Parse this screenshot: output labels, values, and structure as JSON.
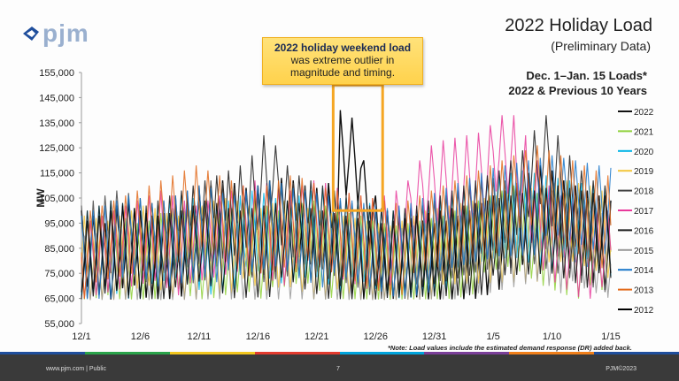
{
  "logo": {
    "text": "pjm"
  },
  "header": {
    "title": "2022 Holiday Load",
    "subtitle": "(Preliminary Data)",
    "range_line1": "Dec. 1–Jan. 15 Loads*",
    "range_line2": "2022 & Previous 10 Years"
  },
  "callout": {
    "line1": "2022 holiday weekend load",
    "line2": "was extreme outlier in",
    "line3": "magnitude and timing."
  },
  "note": "*Note: Load values include the estimated demand response (DR) added back.",
  "footer": {
    "left": "www.pjm.com | Public",
    "page": "7",
    "right": "PJM©2023"
  },
  "chart_data": {
    "type": "line",
    "ylabel": "MW",
    "ylim": [
      55000,
      155000
    ],
    "yticks": [
      "155,000",
      "145,000",
      "135,000",
      "125,000",
      "115,000",
      "105,000",
      "95,000",
      "85,000",
      "75,000",
      "65,000",
      "55,000"
    ],
    "xticks": [
      "12/1",
      "12/6",
      "12/11",
      "12/16",
      "12/21",
      "12/26",
      "12/31",
      "1/5",
      "1/10",
      "1/15"
    ],
    "x_range": [
      "12/1",
      "1/15"
    ],
    "legend_position": "right",
    "highlight": {
      "x_start": "12/23",
      "x_end": "12/26",
      "color": "#f5a623"
    },
    "series": [
      {
        "name": "2022",
        "color": "#111111",
        "daily_peak": [
          100000,
          98000,
          95000,
          102000,
          104000,
          100000,
          98000,
          99000,
          103000,
          105000,
          108000,
          110000,
          112000,
          111000,
          109000,
          110000,
          112000,
          113000,
          112000,
          110000,
          109000,
          111000,
          140000,
          137000,
          120000,
          106000,
          100000,
          98000,
          97000,
          96000,
          95000,
          96000,
          98000,
          100000,
          103000,
          106000,
          108000,
          110000,
          115000,
          118000,
          116000,
          112000,
          110000,
          108000,
          106000,
          104000
        ]
      },
      {
        "name": "2021",
        "color": "#8fd13a",
        "daily_peak": [
          96000,
          98000,
          100000,
          97000,
          95000,
          96000,
          99000,
          101000,
          100000,
          98000,
          97000,
          99000,
          101000,
          103000,
          104000,
          102000,
          100000,
          101000,
          103000,
          104000,
          102000,
          100000,
          99000,
          98000,
          96000,
          95000,
          94000,
          95000,
          96000,
          97000,
          98000,
          100000,
          102000,
          104000,
          106000,
          108000,
          110000,
          109000,
          107000,
          105000,
          104000,
          103000,
          102000,
          101000,
          100000,
          99000
        ]
      },
      {
        "name": "2020",
        "color": "#00b4e6",
        "daily_peak": [
          100000,
          102000,
          104000,
          103000,
          101000,
          100000,
          102000,
          104000,
          106000,
          105000,
          103000,
          102000,
          104000,
          106000,
          108000,
          107000,
          105000,
          104000,
          106000,
          108000,
          109000,
          107000,
          105000,
          104000,
          103000,
          101000,
          100000,
          99000,
          100000,
          102000,
          104000,
          106000,
          108000,
          110000,
          112000,
          114000,
          115000,
          116000,
          115000,
          114000,
          113000,
          112000,
          111000,
          110000,
          109000,
          108000
        ]
      },
      {
        "name": "2019",
        "color": "#f3c63b",
        "daily_peak": [
          98000,
          97000,
          96000,
          98000,
          100000,
          102000,
          101000,
          99000,
          98000,
          100000,
          102000,
          104000,
          105000,
          104000,
          102000,
          101000,
          103000,
          104000,
          103000,
          101000,
          100000,
          99000,
          98000,
          97000,
          96000,
          95000,
          94000,
          96000,
          98000,
          100000,
          101000,
          102000,
          103000,
          104000,
          105000,
          106000,
          107000,
          108000,
          109000,
          110000,
          111000,
          112000,
          111000,
          110000,
          108000,
          106000
        ]
      },
      {
        "name": "2018",
        "color": "#444444",
        "daily_peak": [
          102000,
          104000,
          106000,
          108000,
          107000,
          105000,
          103000,
          104000,
          106000,
          108000,
          110000,
          112000,
          111000,
          109000,
          107000,
          106000,
          108000,
          110000,
          111000,
          110000,
          108000,
          106000,
          104000,
          103000,
          101000,
          100000,
          99000,
          100000,
          101000,
          102000,
          104000,
          106000,
          108000,
          110000,
          112000,
          113000,
          112000,
          111000,
          110000,
          109000,
          108000,
          107000,
          106000,
          105000,
          104000,
          103000
        ]
      },
      {
        "name": "2017",
        "color": "#e8399b",
        "daily_peak": [
          96000,
          98000,
          100000,
          102000,
          104000,
          106000,
          108000,
          106000,
          104000,
          102000,
          104000,
          106000,
          108000,
          110000,
          112000,
          111000,
          109000,
          108000,
          110000,
          112000,
          111000,
          109000,
          107000,
          106000,
          105000,
          106000,
          108000,
          112000,
          120000,
          126000,
          128000,
          129000,
          130000,
          131000,
          134000,
          138000,
          138000,
          130000,
          120000,
          110000,
          106000,
          104000,
          102000,
          101000,
          100000,
          99000
        ]
      },
      {
        "name": "2016",
        "color": "#1a1a1a",
        "daily_peak": [
          100000,
          102000,
          104000,
          103000,
          101000,
          102000,
          104000,
          106000,
          108000,
          110000,
          112000,
          114000,
          116000,
          118000,
          122000,
          130000,
          126000,
          118000,
          114000,
          112000,
          110000,
          108000,
          106000,
          104000,
          102000,
          101000,
          100000,
          101000,
          102000,
          104000,
          106000,
          108000,
          110000,
          112000,
          114000,
          116000,
          120000,
          124000,
          132000,
          138000,
          130000,
          122000,
          116000,
          112000,
          110000,
          108000
        ]
      },
      {
        "name": "2015",
        "color": "#999999",
        "daily_peak": [
          90000,
          91000,
          92000,
          93000,
          92000,
          91000,
          90000,
          91000,
          92000,
          94000,
          96000,
          97000,
          96000,
          95000,
          94000,
          95000,
          96000,
          97000,
          96000,
          95000,
          94000,
          93000,
          92000,
          91000,
          90000,
          91000,
          92000,
          93000,
          94000,
          95000,
          96000,
          97000,
          98000,
          99000,
          100000,
          102000,
          104000,
          106000,
          108000,
          107000,
          105000,
          103000,
          101000,
          100000,
          99000,
          98000
        ]
      },
      {
        "name": "2014",
        "color": "#1a77c9",
        "daily_peak": [
          98000,
          100000,
          102000,
          104000,
          106000,
          105000,
          103000,
          104000,
          106000,
          108000,
          110000,
          109000,
          107000,
          106000,
          108000,
          110000,
          112000,
          111000,
          109000,
          108000,
          107000,
          106000,
          105000,
          104000,
          103000,
          102000,
          101000,
          102000,
          103000,
          105000,
          107000,
          109000,
          111000,
          113000,
          115000,
          117000,
          118000,
          119000,
          120000,
          121000,
          122000,
          121000,
          120000,
          119000,
          118000,
          117000
        ]
      },
      {
        "name": "2013",
        "color": "#e26a1b",
        "daily_peak": [
          100000,
          102000,
          104000,
          106000,
          108000,
          110000,
          112000,
          114000,
          116000,
          118000,
          116000,
          114000,
          112000,
          110000,
          108000,
          110000,
          112000,
          114000,
          113000,
          111000,
          109000,
          108000,
          107000,
          106000,
          105000,
          104000,
          103000,
          104000,
          106000,
          108000,
          110000,
          112000,
          114000,
          116000,
          118000,
          120000,
          122000,
          124000,
          126000,
          124000,
          122000,
          120000,
          118000,
          116000,
          114000,
          112000
        ]
      },
      {
        "name": "2012",
        "color": "#000000",
        "daily_peak": [
          96000,
          98000,
          100000,
          102000,
          101000,
          99000,
          98000,
          99000,
          100000,
          102000,
          104000,
          103000,
          101000,
          100000,
          101000,
          102000,
          103000,
          104000,
          103000,
          101000,
          100000,
          99000,
          98000,
          97000,
          96000,
          95000,
          96000,
          97000,
          98000,
          99000,
          100000,
          101000,
          102000,
          103000,
          104000,
          105000,
          106000,
          107000,
          108000,
          109000,
          110000,
          109000,
          108000,
          107000,
          106000,
          105000
        ]
      }
    ]
  }
}
